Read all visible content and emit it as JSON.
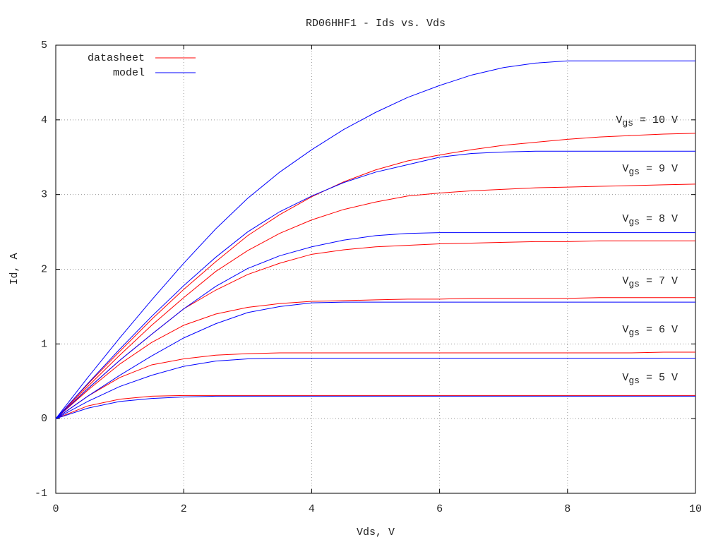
{
  "chart_data": {
    "type": "line",
    "title": "RD06HHF1 - Ids vs. Vds",
    "x_label": "Vds, V",
    "y_label": "Id, A",
    "x": [
      0,
      0.5,
      1,
      1.5,
      2,
      2.5,
      3,
      3.5,
      4,
      4.5,
      5,
      5.5,
      6,
      6.5,
      7,
      7.5,
      8,
      8.5,
      9,
      9.5,
      10
    ],
    "xlim": [
      0,
      10
    ],
    "xticks": [
      0,
      2,
      4,
      6,
      8,
      10
    ],
    "ylim": [
      -1,
      5
    ],
    "yticks": [
      -1,
      0,
      1,
      2,
      3,
      4,
      5
    ],
    "grid": true,
    "legend": "top left",
    "series": [
      {
        "name": "datasheet",
        "color": "#ff0000",
        "curves": [
          [
            0,
            0.17,
            0.26,
            0.3,
            0.31,
            0.31,
            0.31,
            0.31,
            0.31,
            0.31,
            0.31,
            0.31,
            0.31,
            0.31,
            0.31,
            0.31,
            0.31,
            0.31,
            0.31,
            0.31,
            0.31
          ],
          [
            0,
            0.3,
            0.55,
            0.72,
            0.8,
            0.85,
            0.87,
            0.88,
            0.88,
            0.88,
            0.88,
            0.88,
            0.88,
            0.88,
            0.88,
            0.88,
            0.88,
            0.88,
            0.88,
            0.89,
            0.89
          ],
          [
            0,
            0.38,
            0.73,
            1.02,
            1.25,
            1.4,
            1.49,
            1.54,
            1.57,
            1.58,
            1.59,
            1.6,
            1.6,
            1.61,
            1.61,
            1.61,
            1.61,
            1.62,
            1.62,
            1.62,
            1.62
          ],
          [
            0,
            0.4,
            0.78,
            1.13,
            1.47,
            1.72,
            1.93,
            2.08,
            2.2,
            2.26,
            2.3,
            2.32,
            2.34,
            2.35,
            2.36,
            2.37,
            2.37,
            2.38,
            2.38,
            2.38,
            2.38
          ],
          [
            0,
            0.43,
            0.85,
            1.25,
            1.62,
            1.97,
            2.25,
            2.48,
            2.66,
            2.8,
            2.9,
            2.98,
            3.02,
            3.05,
            3.07,
            3.09,
            3.1,
            3.11,
            3.12,
            3.13,
            3.14
          ],
          [
            0,
            0.46,
            0.9,
            1.33,
            1.73,
            2.1,
            2.45,
            2.73,
            2.97,
            3.17,
            3.33,
            3.45,
            3.53,
            3.6,
            3.66,
            3.7,
            3.74,
            3.77,
            3.79,
            3.81,
            3.82
          ]
        ]
      },
      {
        "name": "model",
        "color": "#0000ff",
        "curves": [
          [
            0,
            0.14,
            0.23,
            0.27,
            0.29,
            0.3,
            0.3,
            0.3,
            0.3,
            0.3,
            0.3,
            0.3,
            0.3,
            0.3,
            0.3,
            0.3,
            0.3,
            0.3,
            0.3,
            0.3,
            0.3
          ],
          [
            0,
            0.23,
            0.43,
            0.58,
            0.7,
            0.77,
            0.8,
            0.81,
            0.81,
            0.81,
            0.81,
            0.81,
            0.81,
            0.81,
            0.81,
            0.81,
            0.81,
            0.81,
            0.81,
            0.81,
            0.81
          ],
          [
            0,
            0.3,
            0.58,
            0.84,
            1.08,
            1.27,
            1.42,
            1.5,
            1.55,
            1.56,
            1.56,
            1.56,
            1.56,
            1.56,
            1.56,
            1.56,
            1.56,
            1.56,
            1.56,
            1.56,
            1.56
          ],
          [
            0,
            0.4,
            0.78,
            1.13,
            1.47,
            1.77,
            2.01,
            2.18,
            2.3,
            2.39,
            2.45,
            2.48,
            2.49,
            2.49,
            2.49,
            2.49,
            2.49,
            2.49,
            2.49,
            2.49,
            2.49
          ],
          [
            0,
            0.47,
            0.93,
            1.37,
            1.78,
            2.16,
            2.5,
            2.77,
            2.98,
            3.16,
            3.3,
            3.4,
            3.5,
            3.55,
            3.57,
            3.58,
            3.58,
            3.58,
            3.58,
            3.58,
            3.58
          ],
          [
            0,
            0.55,
            1.08,
            1.59,
            2.08,
            2.54,
            2.95,
            3.3,
            3.6,
            3.87,
            4.1,
            4.3,
            4.46,
            4.6,
            4.7,
            4.76,
            4.79,
            4.79,
            4.79,
            4.79,
            4.79
          ]
        ]
      }
    ],
    "annotations": [
      {
        "main": "V",
        "sub": "gs",
        "tail": " = 5 V"
      },
      {
        "main": "V",
        "sub": "gs",
        "tail": " = 6 V"
      },
      {
        "main": "V",
        "sub": "gs",
        "tail": " = 7 V"
      },
      {
        "main": "V",
        "sub": "gs",
        "tail": " = 8 V"
      },
      {
        "main": "V",
        "sub": "gs",
        "tail": " = 9 V"
      },
      {
        "main": "V",
        "sub": "gs",
        "tail": " = 10 V"
      }
    ]
  }
}
